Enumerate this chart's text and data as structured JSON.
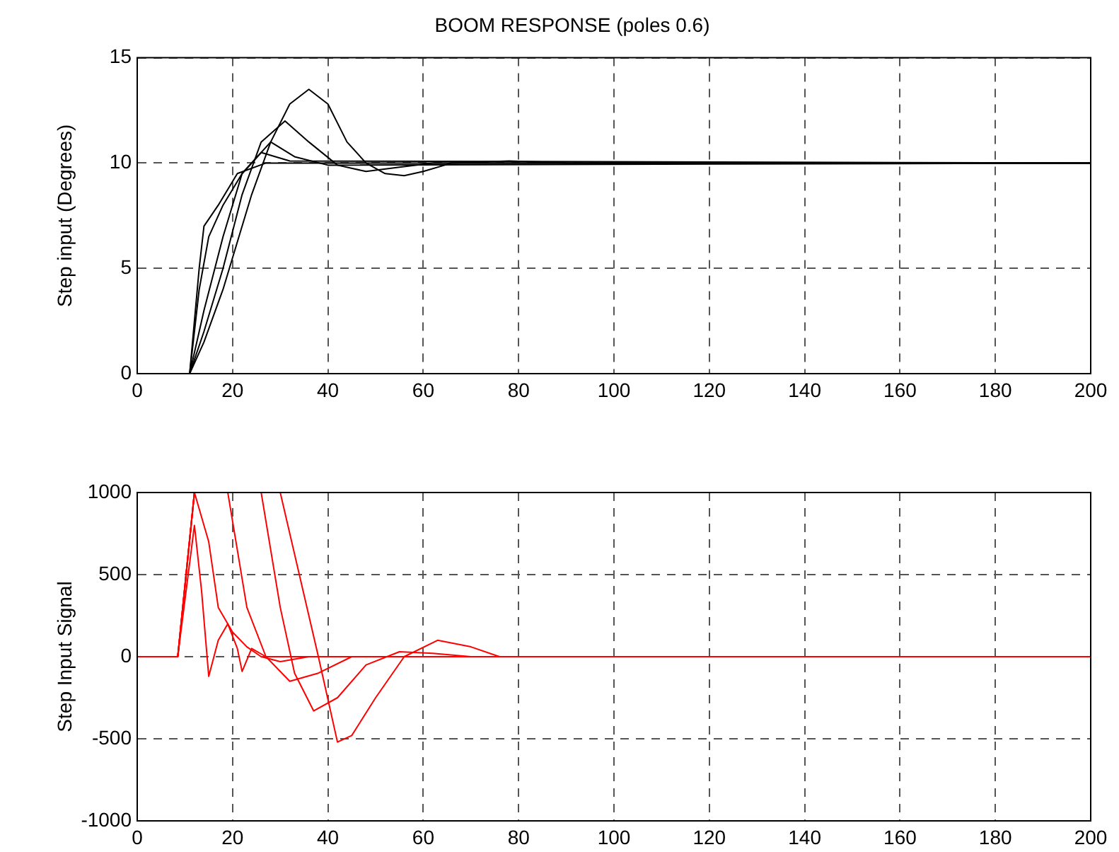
{
  "chart_data": [
    {
      "type": "line",
      "title": "BOOM RESPONSE (poles 0.6)",
      "ylabel": "Step input (Degrees)",
      "xlim": [
        0,
        200
      ],
      "ylim": [
        0,
        15
      ],
      "xticks": [
        0,
        20,
        40,
        60,
        80,
        100,
        120,
        140,
        160,
        180,
        200
      ],
      "yticks": [
        0,
        5,
        10,
        15
      ],
      "grid": true,
      "marker": "none",
      "line_style": "solid",
      "series": [
        {
          "color": "#000000",
          "x": [
            11,
            14,
            18,
            20,
            24,
            28,
            32,
            36,
            40,
            44,
            48,
            52,
            56,
            60,
            66,
            78,
            90,
            200
          ],
          "values": [
            0,
            1.5,
            4,
            5.5,
            8.5,
            11,
            12.8,
            13.5,
            12.8,
            11,
            10,
            9.5,
            9.4,
            9.6,
            10,
            10.1,
            10,
            10
          ]
        },
        {
          "color": "#000000",
          "x": [
            11,
            14,
            18,
            22,
            26,
            31,
            36,
            42,
            48,
            55,
            62,
            200
          ],
          "values": [
            0,
            2,
            5,
            8.5,
            11,
            12,
            11,
            9.9,
            9.6,
            9.8,
            10,
            10
          ]
        },
        {
          "color": "#000000",
          "x": [
            11,
            14,
            18,
            22,
            28,
            33,
            40,
            200
          ],
          "values": [
            0,
            3,
            6.5,
            9.5,
            11,
            10.3,
            9.9,
            10
          ]
        },
        {
          "color": "#000000",
          "x": [
            11,
            13,
            15,
            18,
            22,
            26,
            32,
            200
          ],
          "values": [
            0,
            4,
            6.5,
            8,
            9.5,
            10.5,
            10.1,
            10
          ]
        },
        {
          "color": "#000000",
          "x": [
            11,
            13,
            14,
            17,
            21,
            27,
            200
          ],
          "values": [
            0,
            5,
            7,
            8,
            9.5,
            10,
            10
          ]
        }
      ]
    },
    {
      "type": "line",
      "ylabel": "Step Input Signal",
      "xlim": [
        0,
        200
      ],
      "ylim": [
        -1000,
        1000
      ],
      "xticks": [
        0,
        20,
        40,
        60,
        80,
        100,
        120,
        140,
        160,
        180,
        200
      ],
      "yticks": [
        -1000,
        -500,
        0,
        500,
        1000
      ],
      "grid": true,
      "marker": "none",
      "line_style": "solid",
      "series": [
        {
          "color": "#ff0000",
          "x": [
            0,
            8.5,
            12,
            30,
            34,
            38,
            42,
            45,
            50,
            56,
            63,
            70,
            76,
            200
          ],
          "values": [
            0,
            0,
            1000,
            1000,
            500,
            0,
            -520,
            -480,
            -250,
            0,
            100,
            60,
            0,
            0
          ]
        },
        {
          "color": "#ff0000",
          "x": [
            0,
            8.5,
            12,
            26,
            30,
            33,
            37,
            42,
            48,
            55,
            62,
            70,
            200
          ],
          "values": [
            0,
            0,
            1000,
            1000,
            300,
            -100,
            -330,
            -250,
            -50,
            30,
            20,
            0,
            0
          ]
        },
        {
          "color": "#ff0000",
          "x": [
            0,
            8.5,
            12,
            19,
            23,
            27,
            32,
            38,
            45,
            200
          ],
          "values": [
            0,
            0,
            1000,
            1000,
            300,
            0,
            -150,
            -100,
            0,
            0
          ]
        },
        {
          "color": "#ff0000",
          "x": [
            0,
            8.5,
            12,
            15,
            17,
            20,
            23,
            26,
            30,
            36,
            200
          ],
          "values": [
            0,
            0,
            1000,
            700,
            300,
            150,
            60,
            0,
            -30,
            0,
            0
          ]
        },
        {
          "color": "#ff0000",
          "x": [
            0,
            8.5,
            12,
            13.5,
            15,
            17,
            19,
            21,
            22,
            24,
            27,
            200
          ],
          "values": [
            0,
            0,
            800,
            400,
            -120,
            100,
            200,
            50,
            -90,
            50,
            0,
            0
          ]
        }
      ]
    }
  ]
}
